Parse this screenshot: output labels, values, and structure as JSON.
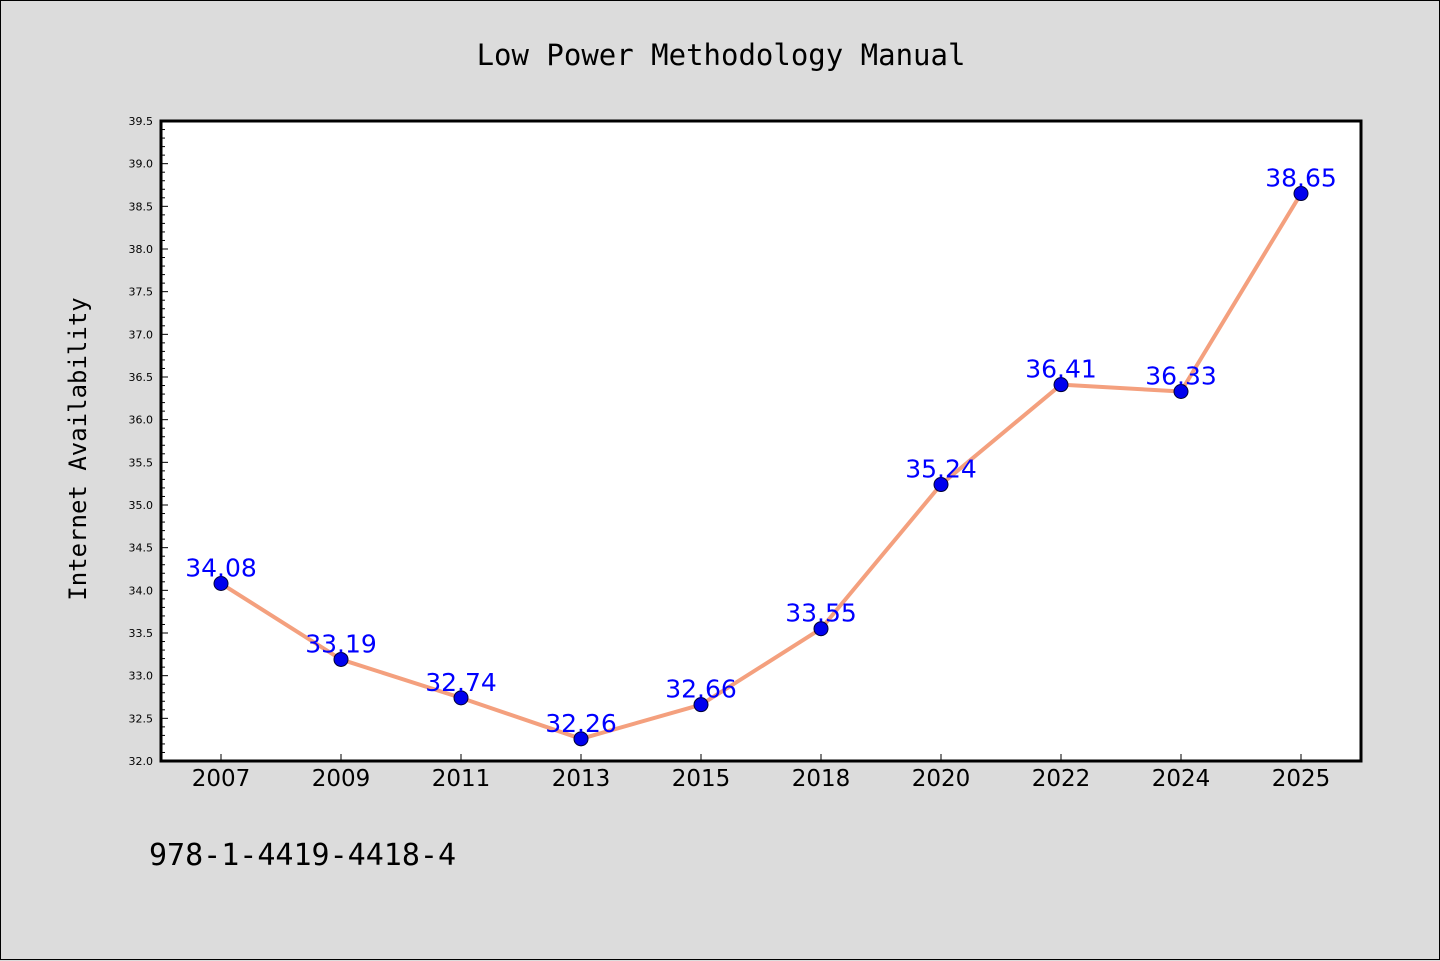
{
  "chart_data": {
    "type": "line",
    "title": "Low Power Methodology Manual",
    "xlabel": "",
    "ylabel": "Internet Availability",
    "categories": [
      "2007",
      "2009",
      "2011",
      "2013",
      "2015",
      "2018",
      "2020",
      "2022",
      "2024",
      "2025"
    ],
    "series": [
      {
        "values": [
          34.08,
          33.19,
          32.74,
          32.26,
          32.66,
          33.55,
          35.24,
          36.41,
          36.33,
          38.65
        ],
        "labels": [
          "34.08",
          "33.19",
          "32.74",
          "32.26",
          "32.66",
          "33.55",
          "35.24",
          "36.41",
          "36.33",
          "38.65"
        ],
        "line_color": "#f4a07e",
        "marker_color": "#0000ee"
      }
    ],
    "ylim": [
      32.0,
      39.5
    ],
    "yticks": [
      "32.0",
      "32.5",
      "33.0",
      "33.5",
      "34.0",
      "34.5",
      "35.0",
      "35.5",
      "36.0",
      "36.5",
      "37.0",
      "37.5",
      "38.0",
      "38.5",
      "39.0",
      "39.5"
    ],
    "grid": false,
    "legend": "none"
  },
  "footer": {
    "isbn": "978-1-4419-4418-4"
  },
  "colors": {
    "background": "#dcdcdc",
    "plot_background": "#ffffff",
    "data_label": "#0000ff"
  }
}
